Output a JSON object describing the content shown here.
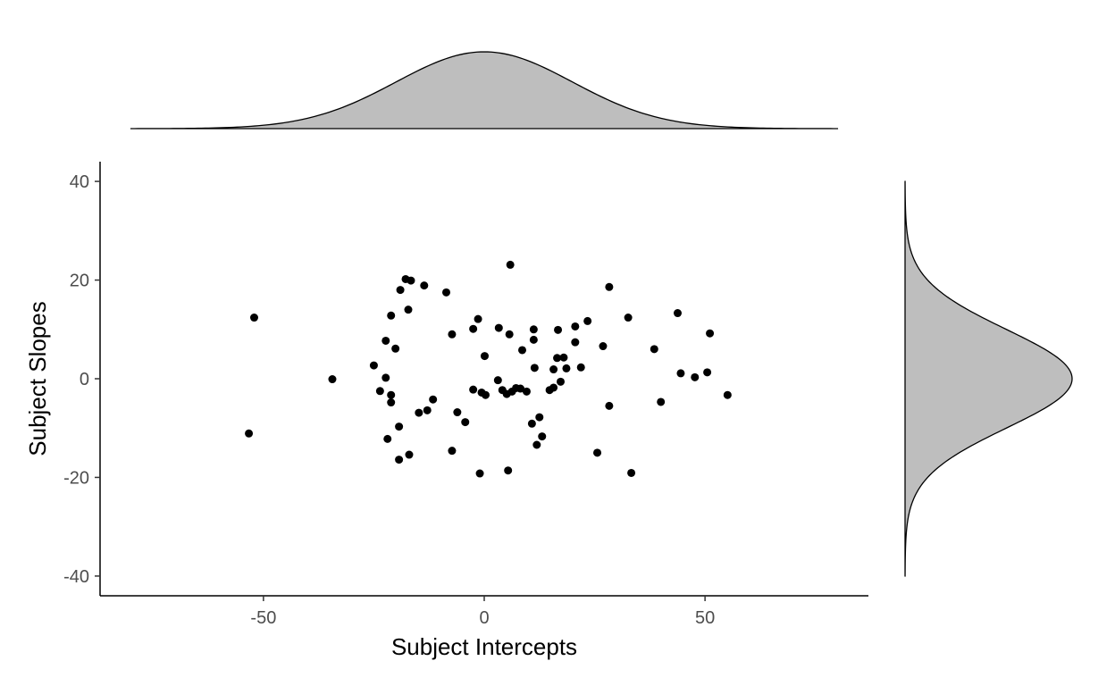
{
  "chart_data": {
    "type": "scatter",
    "xlabel": "Subject Intercepts",
    "ylabel": "Subject Slopes",
    "xlim": [
      -87,
      87
    ],
    "ylim": [
      -44,
      44
    ],
    "x_ticks": [
      {
        "value": -50,
        "label": "-50"
      },
      {
        "value": 0,
        "label": "0"
      },
      {
        "value": 50,
        "label": "50"
      }
    ],
    "y_ticks": [
      {
        "value": -40,
        "label": "-40"
      },
      {
        "value": -20,
        "label": "-20"
      },
      {
        "value": 0,
        "label": "0"
      },
      {
        "value": 20,
        "label": "20"
      },
      {
        "value": 40,
        "label": "40"
      }
    ],
    "grid": false,
    "points": [
      {
        "x": -53.3,
        "y": -11.1
      },
      {
        "x": -52.1,
        "y": 12.4
      },
      {
        "x": -34.4,
        "y": -0.1
      },
      {
        "x": -25.0,
        "y": 2.7
      },
      {
        "x": -23.6,
        "y": -2.5
      },
      {
        "x": -22.3,
        "y": 7.7
      },
      {
        "x": -22.3,
        "y": 0.2
      },
      {
        "x": -21.9,
        "y": -12.2
      },
      {
        "x": -21.1,
        "y": -3.3
      },
      {
        "x": -21.1,
        "y": -4.8
      },
      {
        "x": -21.1,
        "y": 12.8
      },
      {
        "x": -20.1,
        "y": 6.1
      },
      {
        "x": -19.3,
        "y": -16.4
      },
      {
        "x": -19.3,
        "y": -9.7
      },
      {
        "x": -19.0,
        "y": 18.0
      },
      {
        "x": -17.8,
        "y": 20.2
      },
      {
        "x": -17.2,
        "y": 14.0
      },
      {
        "x": -17.0,
        "y": -15.4
      },
      {
        "x": -16.6,
        "y": 19.9
      },
      {
        "x": -14.8,
        "y": -6.9
      },
      {
        "x": -13.6,
        "y": 18.9
      },
      {
        "x": -12.9,
        "y": -6.4
      },
      {
        "x": -11.6,
        "y": -4.2
      },
      {
        "x": -8.6,
        "y": 17.5
      },
      {
        "x": -7.3,
        "y": 9.0
      },
      {
        "x": -7.3,
        "y": -14.6
      },
      {
        "x": -6.1,
        "y": -6.8
      },
      {
        "x": -4.3,
        "y": -8.8
      },
      {
        "x": -2.5,
        "y": 10.1
      },
      {
        "x": -2.5,
        "y": -2.2
      },
      {
        "x": -1.4,
        "y": 12.1
      },
      {
        "x": -1.0,
        "y": -19.2
      },
      {
        "x": -0.6,
        "y": -2.8
      },
      {
        "x": 0.1,
        "y": 4.6
      },
      {
        "x": 0.3,
        "y": -3.3
      },
      {
        "x": 3.1,
        "y": -0.3
      },
      {
        "x": 3.3,
        "y": 10.3
      },
      {
        "x": 4.1,
        "y": -2.3
      },
      {
        "x": 5.1,
        "y": -3.1
      },
      {
        "x": 5.4,
        "y": -18.6
      },
      {
        "x": 5.7,
        "y": 9.0
      },
      {
        "x": 5.9,
        "y": 23.1
      },
      {
        "x": 6.3,
        "y": -2.6
      },
      {
        "x": 7.2,
        "y": -1.9
      },
      {
        "x": 8.2,
        "y": -2.0
      },
      {
        "x": 8.6,
        "y": 5.8
      },
      {
        "x": 9.6,
        "y": -2.6
      },
      {
        "x": 10.8,
        "y": -9.1
      },
      {
        "x": 11.2,
        "y": 7.9
      },
      {
        "x": 11.2,
        "y": 10.0
      },
      {
        "x": 11.4,
        "y": 2.2
      },
      {
        "x": 11.9,
        "y": -13.4
      },
      {
        "x": 12.5,
        "y": -7.8
      },
      {
        "x": 13.1,
        "y": -11.7
      },
      {
        "x": 14.8,
        "y": -2.3
      },
      {
        "x": 15.7,
        "y": -1.8
      },
      {
        "x": 15.7,
        "y": 1.9
      },
      {
        "x": 16.5,
        "y": 4.2
      },
      {
        "x": 16.7,
        "y": 9.9
      },
      {
        "x": 17.3,
        "y": -0.6
      },
      {
        "x": 18.0,
        "y": 4.3
      },
      {
        "x": 18.6,
        "y": 2.1
      },
      {
        "x": 20.6,
        "y": 10.6
      },
      {
        "x": 20.6,
        "y": 7.4
      },
      {
        "x": 21.9,
        "y": 2.3
      },
      {
        "x": 23.4,
        "y": 11.7
      },
      {
        "x": 25.6,
        "y": -15.0
      },
      {
        "x": 26.9,
        "y": 6.6
      },
      {
        "x": 28.3,
        "y": -5.5
      },
      {
        "x": 28.3,
        "y": 18.6
      },
      {
        "x": 32.6,
        "y": 12.4
      },
      {
        "x": 33.3,
        "y": -19.1
      },
      {
        "x": 38.5,
        "y": 6.0
      },
      {
        "x": 40.0,
        "y": -4.7
      },
      {
        "x": 43.8,
        "y": 13.3
      },
      {
        "x": 44.5,
        "y": 1.1
      },
      {
        "x": 47.7,
        "y": 0.3
      },
      {
        "x": 50.5,
        "y": 1.3
      },
      {
        "x": 51.1,
        "y": 9.2
      },
      {
        "x": 55.1,
        "y": -3.3
      }
    ],
    "marginal_x_density": {
      "mean": 0,
      "sd": 20,
      "range": [
        -80,
        80
      ]
    },
    "marginal_y_density": {
      "mean": 0,
      "sd": 10,
      "range": [
        -40,
        40
      ]
    },
    "colors": {
      "points": "#000000",
      "density_fill": "#bebebe",
      "axis": "#000000",
      "tick_text": "#4d4d4d"
    }
  }
}
